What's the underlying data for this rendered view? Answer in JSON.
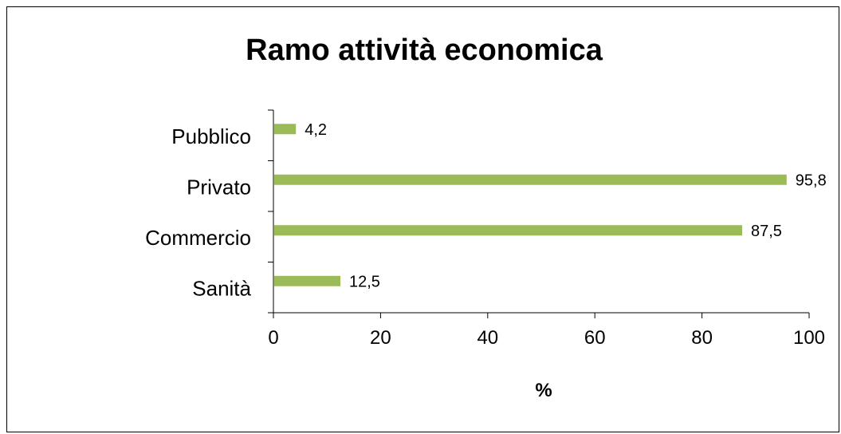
{
  "chart_data": {
    "type": "bar",
    "orientation": "horizontal",
    "title": "Ramo attività economica",
    "xlabel": "%",
    "ylabel": "",
    "categories": [
      "Pubblico",
      "Privato",
      "Commercio",
      "Sanità"
    ],
    "values": [
      4.2,
      95.8,
      87.5,
      12.5
    ],
    "value_labels": [
      "4,2",
      "95,8",
      "87,5",
      "12,5"
    ],
    "xlim": [
      0,
      100
    ],
    "xticks": [
      0,
      20,
      40,
      60,
      80,
      100
    ],
    "grid": false,
    "legend": "none",
    "bar_color": "#9BBB59"
  }
}
